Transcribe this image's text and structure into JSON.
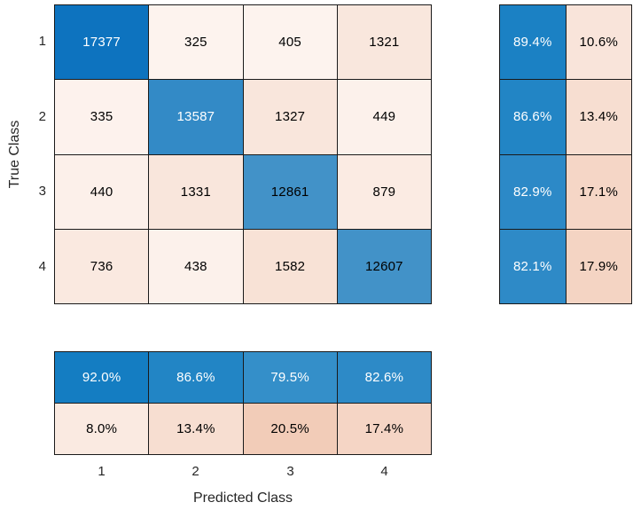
{
  "figure": {
    "background": "#ffffff",
    "grid_line_color": "#1a1a1a",
    "tick_color": "#262626",
    "label_color": "#262626"
  },
  "chart_data": {
    "type": "heatmap",
    "subtype": "confusion-matrix-chart",
    "xlabel": "Predicted Class",
    "ylabel": "True Class",
    "x_tick_labels": [
      "1",
      "2",
      "3",
      "4"
    ],
    "y_tick_labels": [
      "1",
      "2",
      "3",
      "4"
    ],
    "matrix_rows_true_class": [
      [
        17377,
        325,
        405,
        1321
      ],
      [
        335,
        13587,
        1327,
        449
      ],
      [
        440,
        1331,
        12861,
        879
      ],
      [
        736,
        438,
        1582,
        12607
      ]
    ],
    "row_summary_pct_correct_incorrect": [
      [
        89.4,
        10.6
      ],
      [
        86.6,
        13.4
      ],
      [
        82.9,
        17.1
      ],
      [
        82.1,
        17.9
      ]
    ],
    "column_summary_pct_correct_incorrect": [
      [
        92.0,
        86.6,
        79.5,
        82.6
      ],
      [
        8.0,
        13.4,
        20.5,
        17.4
      ]
    ],
    "diagonal_base_color": "#0d73bf",
    "off_diagonal_base_color": "#f2ccb8",
    "legend_position": "none",
    "grid": "cell-borders"
  },
  "cells": {
    "matrix": [
      {
        "t": "17377",
        "bg": "#0d73bf",
        "fg": "#ffffff"
      },
      {
        "t": "325",
        "bg": "#fdf3ee",
        "fg": "#000000"
      },
      {
        "t": "405",
        "bg": "#fdf3ee",
        "fg": "#000000"
      },
      {
        "t": "1321",
        "bg": "#f9e7dd",
        "fg": "#000000"
      },
      {
        "t": "335",
        "bg": "#fdf2ed",
        "fg": "#000000"
      },
      {
        "t": "13587",
        "bg": "#338ac6",
        "fg": "#ffffff"
      },
      {
        "t": "1327",
        "bg": "#f9e6dc",
        "fg": "#000000"
      },
      {
        "t": "449",
        "bg": "#fcf1eb",
        "fg": "#000000"
      },
      {
        "t": "440",
        "bg": "#fcf0ea",
        "fg": "#000000"
      },
      {
        "t": "1331",
        "bg": "#f9e6dc",
        "fg": "#000000"
      },
      {
        "t": "12861",
        "bg": "#4292c8",
        "fg": "#000000"
      },
      {
        "t": "879",
        "bg": "#fbebe3",
        "fg": "#000000"
      },
      {
        "t": "736",
        "bg": "#fae9e0",
        "fg": "#000000"
      },
      {
        "t": "438",
        "bg": "#fcf1eb",
        "fg": "#000000"
      },
      {
        "t": "1582",
        "bg": "#f8e2d6",
        "fg": "#000000"
      },
      {
        "t": "12607",
        "bg": "#4292c8",
        "fg": "#000000"
      }
    ],
    "row_summary": [
      {
        "t": "89.4%",
        "bg": "#1b81c4",
        "fg": "#ffffff"
      },
      {
        "t": "10.6%",
        "bg": "#f9e4da",
        "fg": "#000000"
      },
      {
        "t": "86.6%",
        "bg": "#2285c5",
        "fg": "#ffffff"
      },
      {
        "t": "13.4%",
        "bg": "#f7ded1",
        "fg": "#000000"
      },
      {
        "t": "82.9%",
        "bg": "#2c89c7",
        "fg": "#ffffff"
      },
      {
        "t": "17.1%",
        "bg": "#f5d6c6",
        "fg": "#000000"
      },
      {
        "t": "82.1%",
        "bg": "#2e8ac7",
        "fg": "#ffffff"
      },
      {
        "t": "17.9%",
        "bg": "#f4d4c3",
        "fg": "#000000"
      }
    ],
    "col_summary": [
      {
        "t": "92.0%",
        "bg": "#147dc2",
        "fg": "#ffffff"
      },
      {
        "t": "86.6%",
        "bg": "#2285c5",
        "fg": "#ffffff"
      },
      {
        "t": "79.5%",
        "bg": "#348fc9",
        "fg": "#ffffff"
      },
      {
        "t": "82.6%",
        "bg": "#2d8ac7",
        "fg": "#ffffff"
      },
      {
        "t": "8.0%",
        "bg": "#faeae1",
        "fg": "#000000"
      },
      {
        "t": "13.4%",
        "bg": "#f7ded1",
        "fg": "#000000"
      },
      {
        "t": "20.5%",
        "bg": "#f2ccb8",
        "fg": "#000000"
      },
      {
        "t": "17.4%",
        "bg": "#f5d5c5",
        "fg": "#000000"
      }
    ]
  }
}
